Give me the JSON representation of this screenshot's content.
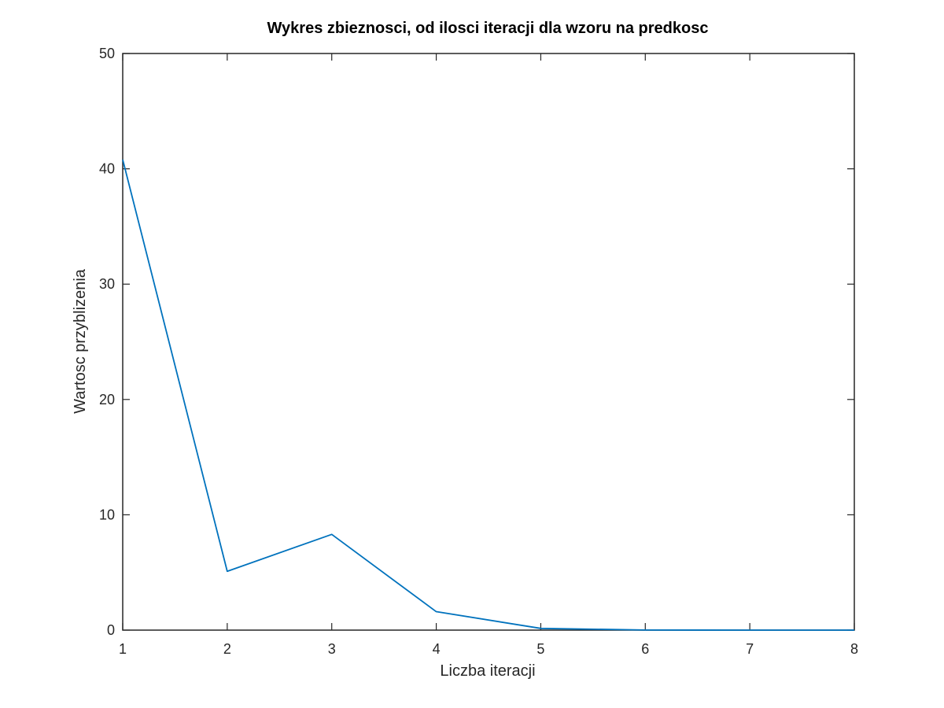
{
  "chart_data": {
    "type": "line",
    "title": "Wykres zbieznosci, od ilosci iteracji dla wzoru na predkosc",
    "xlabel": "Liczba iteracji",
    "ylabel": "Wartosc przyblizenia",
    "xlim": [
      1,
      8
    ],
    "ylim": [
      0,
      50
    ],
    "xticks": [
      1,
      2,
      3,
      4,
      5,
      6,
      7,
      8
    ],
    "yticks": [
      0,
      10,
      20,
      30,
      40,
      50
    ],
    "grid": false,
    "series": [
      {
        "color": "#0072bd",
        "x": [
          1,
          2,
          3,
          4,
          5,
          6,
          7,
          8
        ],
        "y": [
          40.8,
          5.1,
          8.3,
          1.6,
          0.15,
          0.01,
          0.0,
          0.0
        ]
      }
    ]
  }
}
